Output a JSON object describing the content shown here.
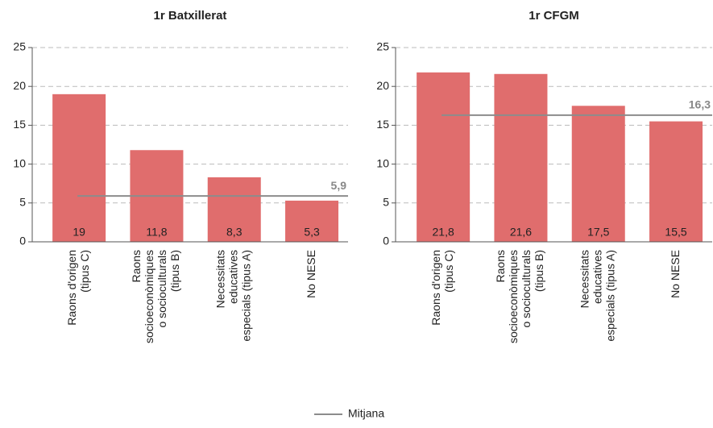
{
  "chart_data": [
    {
      "type": "bar",
      "title": "1r Batxillerat",
      "categories": [
        [
          "Raons d'origen",
          "(tipus C)"
        ],
        [
          "Raons",
          "socioeconòmiques",
          "o socioculturals",
          "(tipus B)"
        ],
        [
          "Necessitats",
          "educatives",
          "especials (tipus A)"
        ],
        [
          "No NESE"
        ]
      ],
      "values": [
        19,
        11.8,
        8.3,
        5.3
      ],
      "value_labels": [
        "19",
        "11,8",
        "8,3",
        "5,3"
      ],
      "color": "#e06d6d",
      "reference_line": {
        "value": 5.9,
        "label": "5,9"
      },
      "ylim": [
        0,
        25
      ],
      "yticks": [
        0,
        5,
        10,
        15,
        20,
        25
      ],
      "grid": true
    },
    {
      "type": "bar",
      "title": "1r CFGM",
      "categories": [
        [
          "Raons d'origen",
          "(tipus C)"
        ],
        [
          "Raons",
          "socioeconòmiques",
          "o socioculturals",
          "(tipus B)"
        ],
        [
          "Necessitats",
          "educatives",
          "especials (tipus A)"
        ],
        [
          "No NESE"
        ]
      ],
      "values": [
        21.8,
        21.6,
        17.5,
        15.5
      ],
      "value_labels": [
        "21,8",
        "21,6",
        "17,5",
        "15,5"
      ],
      "color": "#e06d6d",
      "reference_line": {
        "value": 16.3,
        "label": "16,3"
      },
      "ylim": [
        0,
        25
      ],
      "yticks": [
        0,
        5,
        10,
        15,
        20,
        25
      ],
      "grid": true
    }
  ],
  "legend": {
    "name": "Mitjana",
    "color": "#8c8c8c"
  }
}
